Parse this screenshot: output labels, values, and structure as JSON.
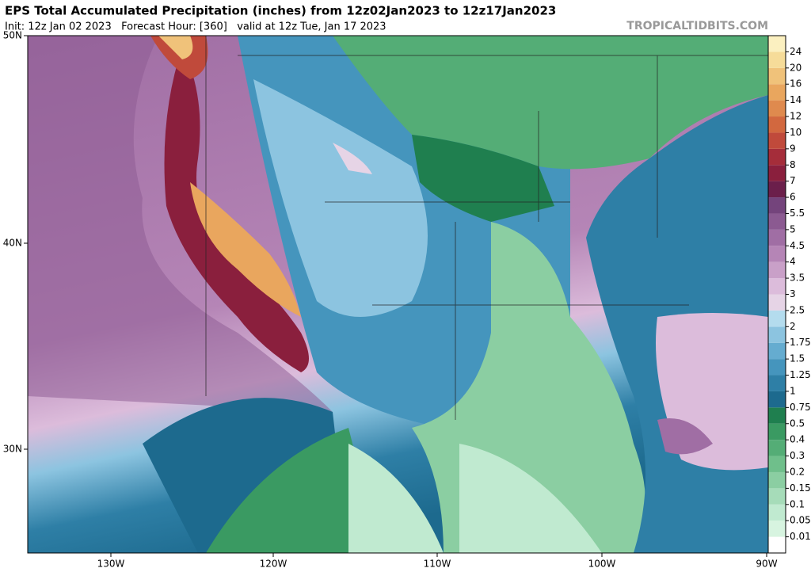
{
  "header": {
    "title": "EPS Total Accumulated Precipitation (inches) from 12z02Jan2023 to 12z17Jan2023",
    "subtitle": "Init: 12z Jan 02 2023   Forecast Hour: [360]   valid at 12z Tue, Jan 17 2023",
    "watermark": "TROPICALTIDBITS.COM"
  },
  "map": {
    "lat_labels": [
      "50N",
      "40N",
      "30N"
    ],
    "lon_labels": [
      "130W",
      "120W",
      "110W",
      "100W",
      "90W"
    ]
  },
  "colorbar": {
    "labels": [
      "0.01",
      "0.05",
      "0.1",
      "0.15",
      "0.2",
      "0.3",
      "0.4",
      "0.5",
      "0.75",
      "1",
      "1.25",
      "1.5",
      "1.75",
      "2",
      "2.5",
      "3",
      "3.5",
      "4",
      "4.5",
      "5",
      "5.5",
      "6",
      "7",
      "8",
      "9",
      "10",
      "12",
      "14",
      "16",
      "20",
      "24"
    ],
    "colors": [
      "#ffffff",
      "#d7f4e0",
      "#c0ead0",
      "#a6dcb9",
      "#8bcea2",
      "#6fbf8b",
      "#54ad76",
      "#3a9a62",
      "#1f7f4f",
      "#1d6a8e",
      "#2e7fa6",
      "#4595bd",
      "#65acd0",
      "#8cc4e0",
      "#b4dcee",
      "#e6d4e6",
      "#dcbcdb",
      "#c9a0c8",
      "#b585b6",
      "#a06ea4",
      "#8b5a91",
      "#74447c",
      "#6b1f4b",
      "#8a1f3d",
      "#a52d3a",
      "#c04a3b",
      "#d2683f",
      "#df8a4e",
      "#e9a65e",
      "#f0c27a",
      "#f6dc99",
      "#fbf0c0"
    ]
  }
}
